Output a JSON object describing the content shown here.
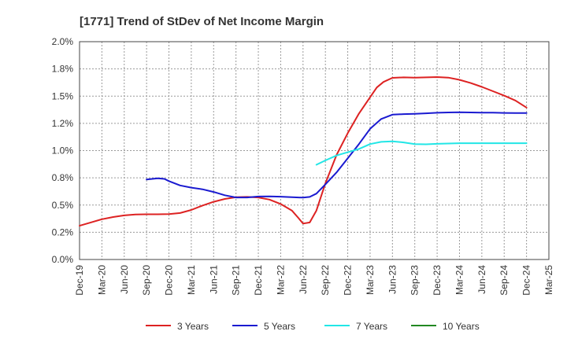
{
  "chart_data": {
    "type": "line",
    "title": "[1771]  Trend of StDev of Net Income Margin",
    "xlabel": "",
    "ylabel": "",
    "ylim": [
      0,
      2.0
    ],
    "y_ticks": [
      "0.0%",
      "0.2%",
      "0.5%",
      "0.8%",
      "1.0%",
      "1.2%",
      "1.5%",
      "1.8%",
      "2.0%"
    ],
    "categories": [
      "Dec-19",
      "Mar-20",
      "Jun-20",
      "Sep-20",
      "Dec-20",
      "Mar-21",
      "Jun-21",
      "Sep-21",
      "Dec-21",
      "Mar-22",
      "Jun-22",
      "Sep-22",
      "Dec-22",
      "Mar-23",
      "Jun-23",
      "Sep-23",
      "Dec-23",
      "Mar-24",
      "Jun-24",
      "Sep-24",
      "Dec-24",
      "Mar-25"
    ],
    "grid": true,
    "legend_position": "bottom",
    "series": [
      {
        "name": "3 Years",
        "color": "#dd2222",
        "points": [
          [
            0,
            0.31
          ],
          [
            0.5,
            0.34
          ],
          [
            1,
            0.37
          ],
          [
            1.5,
            0.39
          ],
          [
            2,
            0.405
          ],
          [
            2.5,
            0.413
          ],
          [
            3,
            0.415
          ],
          [
            3.5,
            0.415
          ],
          [
            4,
            0.417
          ],
          [
            4.5,
            0.427
          ],
          [
            5,
            0.455
          ],
          [
            5.5,
            0.495
          ],
          [
            6,
            0.53
          ],
          [
            6.5,
            0.556
          ],
          [
            7,
            0.572
          ],
          [
            7.5,
            0.575
          ],
          [
            8,
            0.57
          ],
          [
            8.5,
            0.55
          ],
          [
            9,
            0.51
          ],
          [
            9.5,
            0.45
          ],
          [
            9.8,
            0.38
          ],
          [
            10,
            0.33
          ],
          [
            10.3,
            0.34
          ],
          [
            10.6,
            0.45
          ],
          [
            11,
            0.7
          ],
          [
            11.5,
            0.96
          ],
          [
            12,
            1.16
          ],
          [
            12.5,
            1.34
          ],
          [
            13,
            1.49
          ],
          [
            13.3,
            1.58
          ],
          [
            13.6,
            1.63
          ],
          [
            14,
            1.668
          ],
          [
            14.5,
            1.672
          ],
          [
            15,
            1.67
          ],
          [
            15.5,
            1.672
          ],
          [
            16,
            1.675
          ],
          [
            16.5,
            1.67
          ],
          [
            17,
            1.65
          ],
          [
            17.5,
            1.62
          ],
          [
            18,
            1.585
          ],
          [
            18.5,
            1.545
          ],
          [
            19,
            1.505
          ],
          [
            19.5,
            1.46
          ],
          [
            20,
            1.395
          ]
        ]
      },
      {
        "name": "5 Years",
        "color": "#1a1ad0",
        "points": [
          [
            3,
            0.735
          ],
          [
            3.5,
            0.745
          ],
          [
            3.8,
            0.74
          ],
          [
            4,
            0.72
          ],
          [
            4.5,
            0.68
          ],
          [
            5,
            0.66
          ],
          [
            5.5,
            0.645
          ],
          [
            6,
            0.62
          ],
          [
            6.5,
            0.59
          ],
          [
            7,
            0.57
          ],
          [
            7.5,
            0.57
          ],
          [
            8,
            0.578
          ],
          [
            8.5,
            0.58
          ],
          [
            9,
            0.577
          ],
          [
            9.5,
            0.572
          ],
          [
            10,
            0.568
          ],
          [
            10.3,
            0.575
          ],
          [
            10.6,
            0.605
          ],
          [
            11,
            0.69
          ],
          [
            11.5,
            0.8
          ],
          [
            12,
            0.93
          ],
          [
            12.5,
            1.06
          ],
          [
            13,
            1.2
          ],
          [
            13.5,
            1.29
          ],
          [
            14,
            1.33
          ],
          [
            14.5,
            1.335
          ],
          [
            15,
            1.338
          ],
          [
            15.5,
            1.342
          ],
          [
            16,
            1.347
          ],
          [
            16.5,
            1.35
          ],
          [
            17,
            1.352
          ],
          [
            17.5,
            1.35
          ],
          [
            18,
            1.348
          ],
          [
            18.5,
            1.348
          ],
          [
            19,
            1.346
          ],
          [
            19.5,
            1.345
          ],
          [
            20,
            1.345
          ]
        ]
      },
      {
        "name": "7 Years",
        "color": "#22e6e6",
        "points": [
          [
            10.6,
            0.87
          ],
          [
            11,
            0.91
          ],
          [
            11.5,
            0.955
          ],
          [
            12,
            0.985
          ],
          [
            12.5,
            1.015
          ],
          [
            13,
            1.06
          ],
          [
            13.5,
            1.08
          ],
          [
            14,
            1.085
          ],
          [
            14.5,
            1.075
          ],
          [
            15,
            1.06
          ],
          [
            15.5,
            1.058
          ],
          [
            16,
            1.062
          ],
          [
            16.5,
            1.065
          ],
          [
            17,
            1.068
          ],
          [
            17.5,
            1.068
          ],
          [
            18,
            1.068
          ],
          [
            18.5,
            1.068
          ],
          [
            19,
            1.068
          ],
          [
            19.5,
            1.068
          ],
          [
            20,
            1.068
          ]
        ]
      },
      {
        "name": "10 Years",
        "color": "#228822",
        "points": []
      }
    ]
  }
}
